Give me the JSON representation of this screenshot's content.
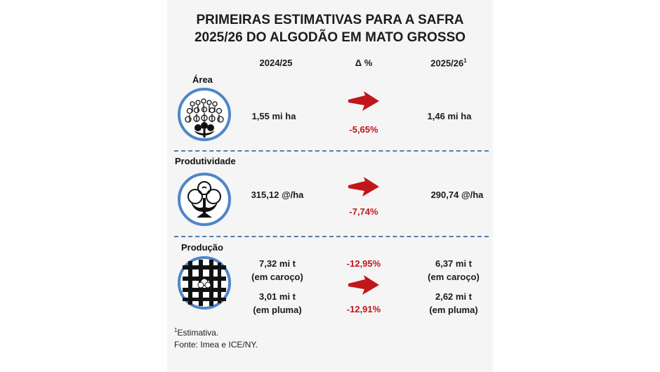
{
  "title": {
    "line1": "PRIMEIRAS ESTIMATIVAS PARA A SAFRA",
    "line2": "2025/26 DO ALGODÃO EM MATO GROSSO"
  },
  "columns": {
    "prev": "2024/25",
    "delta": "Δ %",
    "next": "2025/26",
    "next_sup": "1"
  },
  "rows": {
    "area": {
      "label": "Área",
      "prev": "1,55 mi ha",
      "delta": "-5,65%",
      "next": "1,46 mi ha"
    },
    "produtividade": {
      "label": "Produtividade",
      "prev": "315,12 @/ha",
      "delta": "-7,74%",
      "next": "290,74 @/ha"
    },
    "producao": {
      "label": "Produção",
      "prev_caroco_1": "7,32 mi t",
      "prev_caroco_2": "(em caroço)",
      "prev_pluma_1": "3,01 mi t",
      "prev_pluma_2": "(em pluma)",
      "delta_caroco": "-12,95%",
      "delta_pluma": "-12,91%",
      "next_caroco_1": "6,37 mi t",
      "next_caroco_2": "(em caroço)",
      "next_pluma_1": "2,62 mi t",
      "next_pluma_2": "(em pluma)"
    }
  },
  "footnote": {
    "sup": "1",
    "note": "Estimativa.",
    "source": "Fonte: Imea e ICE/NY."
  },
  "colors": {
    "accent_red": "#c0161c",
    "icon_blue": "#4f86c6",
    "divider_blue": "#4f7fae"
  },
  "icons": [
    "cotton-field-icon",
    "cotton-boll-icon",
    "cotton-bale-icon",
    "arrow-right-icon"
  ]
}
